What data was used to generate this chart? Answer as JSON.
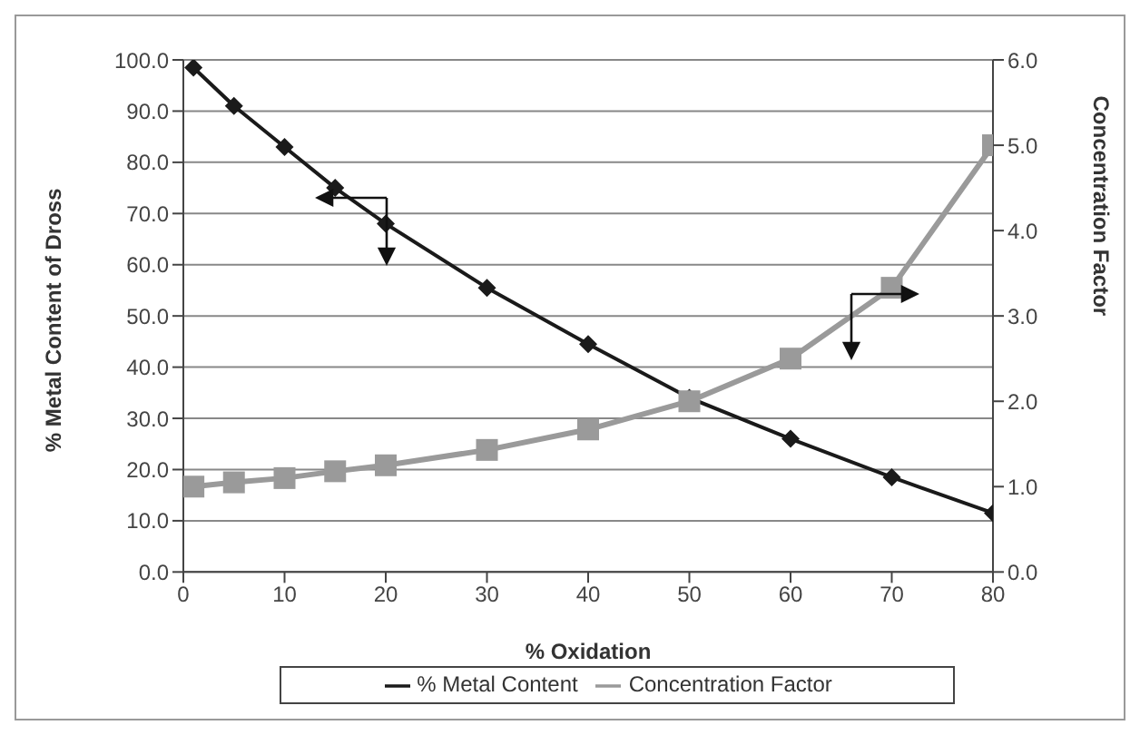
{
  "chart_data": {
    "type": "line",
    "xlabel": "% Oxidation",
    "ylabel": "% Metal Content of Dross",
    "y2label": "Concentration Factor",
    "x": [
      1,
      5,
      10,
      15,
      20,
      30,
      40,
      50,
      60,
      70,
      80
    ],
    "series": [
      {
        "name": "% Metal Content",
        "color": "#1a1a1a",
        "marker": "diamond",
        "values": [
          98.5,
          91,
          83,
          75,
          68,
          55.5,
          44.5,
          34,
          26,
          18.5,
          11.5
        ]
      },
      {
        "name": "Concentration Factor",
        "color": "#9a9a9a",
        "marker": "square",
        "axis": "y2",
        "values": [
          1.0,
          1.05,
          1.1,
          1.18,
          1.25,
          1.43,
          1.67,
          2.0,
          2.5,
          3.33,
          5.0
        ]
      }
    ],
    "xlim": [
      0,
      80
    ],
    "xticks": [
      0,
      10,
      20,
      30,
      40,
      50,
      60,
      70,
      80
    ],
    "ylim": [
      0,
      100
    ],
    "yticks": [
      {
        "value": 0,
        "label": "0.0"
      },
      {
        "value": 10,
        "label": "10.0"
      },
      {
        "value": 20,
        "label": "20.0"
      },
      {
        "value": 30,
        "label": "30.0"
      },
      {
        "value": 40,
        "label": "40.0"
      },
      {
        "value": 50,
        "label": "50.0"
      },
      {
        "value": 60,
        "label": "60.0"
      },
      {
        "value": 70,
        "label": "70.0"
      },
      {
        "value": 80,
        "label": "80.0"
      },
      {
        "value": 90,
        "label": "90.0"
      },
      {
        "value": 100,
        "label": "100.0"
      }
    ],
    "y2lim": [
      0,
      6
    ],
    "y2ticks": [
      {
        "value": 0,
        "label": "0.0"
      },
      {
        "value": 1,
        "label": "1.0"
      },
      {
        "value": 2,
        "label": "2.0"
      },
      {
        "value": 3,
        "label": "3.0"
      },
      {
        "value": 4,
        "label": "4.0"
      },
      {
        "value": 5,
        "label": "5.0"
      },
      {
        "value": 6,
        "label": "6.0"
      }
    ],
    "grid": "y",
    "legend": "bottom",
    "line_style": "solid"
  }
}
